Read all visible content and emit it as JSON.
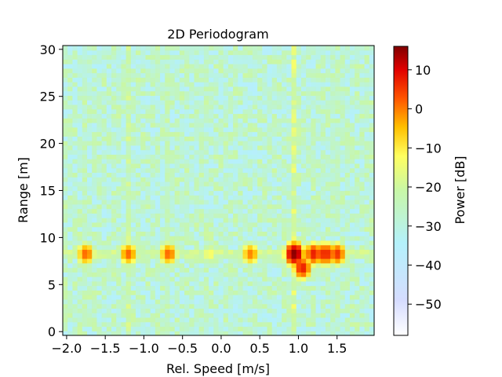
{
  "chart_data": {
    "type": "heatmap",
    "title": "2D Periodogram",
    "xlabel": "Rel. Speed [m/s]",
    "ylabel": "Range [m]",
    "colorbar_label": "Power [dB]",
    "xlim": [
      -2.0,
      2.0
    ],
    "ylim": [
      0,
      30
    ],
    "clim": [
      -58,
      16
    ],
    "colormap": "jet",
    "x_ticks": [
      -2.0,
      -1.5,
      -1.0,
      -0.5,
      0.0,
      0.5,
      1.0,
      1.5
    ],
    "x_tick_labels": [
      "−2.0",
      "−1.5",
      "−1.0",
      "−0.5",
      "0.0",
      "0.5",
      "1.0",
      "1.5"
    ],
    "y_ticks": [
      0,
      5,
      10,
      15,
      20,
      25,
      30
    ],
    "y_tick_labels": [
      "0",
      "5",
      "10",
      "15",
      "20",
      "25",
      "30"
    ],
    "colorbar_ticks": [
      10,
      0,
      -10,
      -20,
      -30,
      -40,
      -50
    ],
    "colorbar_tick_labels": [
      "10",
      "0",
      "−10",
      "−20",
      "−30",
      "−40",
      "−50"
    ],
    "grid": false,
    "background_level_db": -28,
    "peaks": [
      {
        "speed": -1.75,
        "range": 8.3,
        "power_db": 2
      },
      {
        "speed": -1.2,
        "range": 8.3,
        "power_db": 2
      },
      {
        "speed": -0.68,
        "range": 8.3,
        "power_db": 2
      },
      {
        "speed": -0.15,
        "range": 8.3,
        "power_db": -12
      },
      {
        "speed": 0.38,
        "range": 8.3,
        "power_db": 0
      },
      {
        "speed": 0.95,
        "range": 8.3,
        "power_db": 16
      },
      {
        "speed": 1.05,
        "range": 6.8,
        "power_db": 8
      },
      {
        "speed": 1.2,
        "range": 8.3,
        "power_db": 8
      },
      {
        "speed": 1.35,
        "range": 8.3,
        "power_db": 8
      },
      {
        "speed": 1.5,
        "range": 8.3,
        "power_db": 6
      }
    ],
    "vertical_ridges": [
      {
        "speed": 0.93,
        "power_db": -16
      },
      {
        "speed": 1.47,
        "power_db": -20
      },
      {
        "speed": -0.22,
        "power_db": -22
      },
      {
        "speed": -0.68,
        "power_db": -22
      },
      {
        "speed": -1.2,
        "power_db": -22
      },
      {
        "speed": -1.75,
        "power_db": -24
      }
    ]
  }
}
